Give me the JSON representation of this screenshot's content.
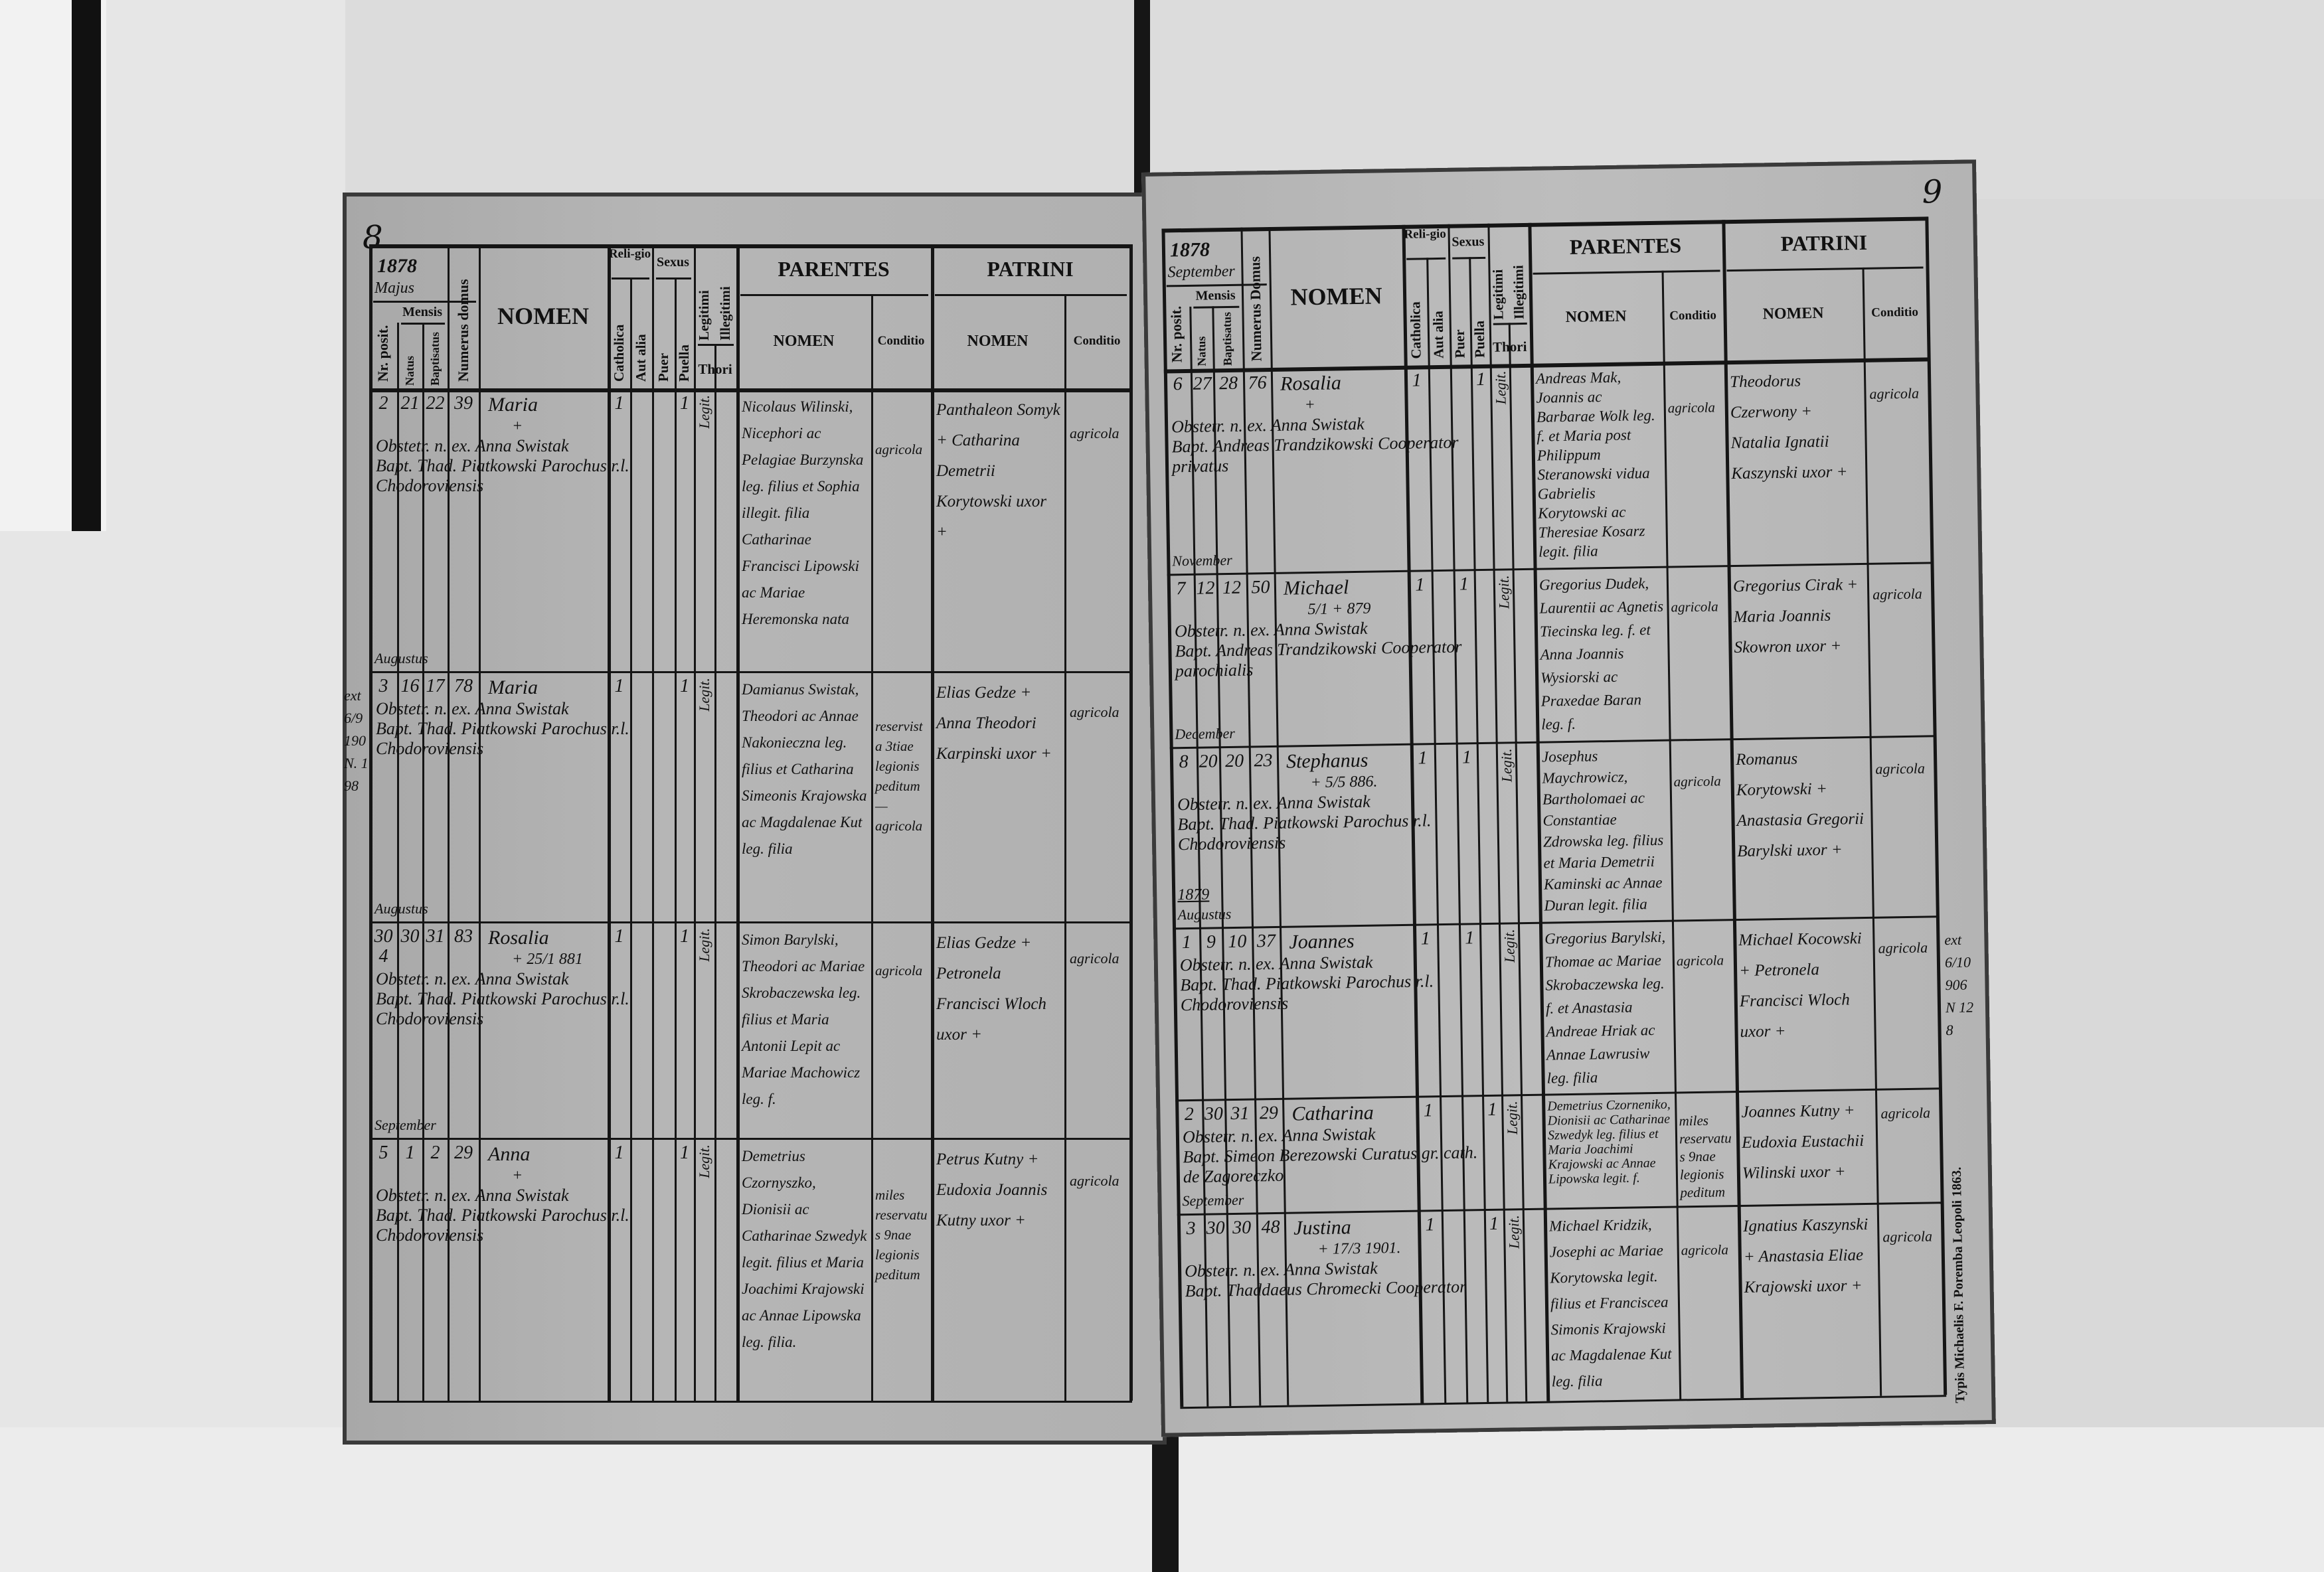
{
  "headers": {
    "mensis": "Mensis",
    "nr_posit": "Nr. posit.",
    "natus": "Natus",
    "baptisatus": "Baptisatus",
    "nomen": "NOMEN",
    "religio": "Reli-gio",
    "catholica": "Catholica",
    "aut_alia": "Aut alia",
    "sexus": "Sexus",
    "puer": "Puer",
    "puella": "Puella",
    "legitimi": "Legitimi",
    "illegitimi": "Illegitimi",
    "thori": "Thori",
    "parentes": "PARENTES",
    "patrini": "PATRINI",
    "sub_nomen": "NOMEN",
    "conditio": "Conditio"
  },
  "left_page": {
    "page_number": "8",
    "year": "1878",
    "month_header": "Majus",
    "numerus_domus": "Numerus domus",
    "entries": [
      {
        "nr": "2",
        "natus": "21",
        "baptisatus": "22",
        "domus": "39",
        "nomen": "Maria",
        "nomen_note": "+",
        "catholica": "1",
        "puer": "",
        "puella": "1",
        "thori": "Legit.",
        "obstetrix": "Obstetr. n. ex. Anna Swistak",
        "baptizans": "Bapt. Thad. Piatkowski Parochus r.l. Chodoroviensis",
        "parentes": "Nicolaus Wilinski, Nicephori ac Pelagiae Burzynska leg. filius et Sophia illegit. filia Catharinae Francisci Lipowski ac Mariae Heremonska nata",
        "parentes_conditio": "agricola",
        "patrini": "Panthaleon Somyk + Catharina Demetrii Korytowski uxor +",
        "patrini_conditio": "agricola",
        "month_after": "Augustus",
        "margin_note": ""
      },
      {
        "nr": "3",
        "natus": "16",
        "baptisatus": "17",
        "domus": "78",
        "nomen": "Maria",
        "nomen_note": "",
        "catholica": "1",
        "puer": "",
        "puella": "1",
        "thori": "Legit.",
        "obstetrix": "Obstetr. n. ex. Anna Swistak",
        "baptizans": "Bapt. Thad. Piatkowski Parochus r.l. Chodoroviensis",
        "parentes": "Damianus Swistak, Theodori ac Annae Nakonieczna leg. filius et Catharina Simeonis Krajowska ac Magdalenae Kut leg. filia",
        "parentes_conditio": "reservista 3tiae legionis peditum — agricola",
        "patrini": "Elias Gedze + Anna Theodori Karpinski uxor +",
        "patrini_conditio": "agricola",
        "month_after": "Augustus",
        "margin_note": "ext 6/9 190 N. 198"
      },
      {
        "nr": "30 4",
        "natus": "30",
        "baptisatus": "31",
        "domus": "83",
        "nomen": "Rosalia",
        "nomen_note": "+ 25/1 881",
        "catholica": "1",
        "puer": "",
        "puella": "1",
        "thori": "Legit.",
        "obstetrix": "Obstetr. n. ex. Anna Swistak",
        "baptizans": "Bapt. Thad. Piatkowski Parochus r.l. Chodoroviensis",
        "parentes": "Simon Barylski, Theodori ac Mariae Skrobaczewska leg. filius et Maria Antonii Lepit ac Mariae Machowicz leg. f.",
        "parentes_conditio": "agricola",
        "patrini": "Elias Gedze + Petronela Francisci Wloch uxor +",
        "patrini_conditio": "agricola",
        "month_after": "September",
        "margin_note": ""
      },
      {
        "nr": "5",
        "natus": "1",
        "baptisatus": "2",
        "domus": "29",
        "nomen": "Anna",
        "nomen_note": "+",
        "catholica": "1",
        "puer": "",
        "puella": "1",
        "thori": "Legit.",
        "obstetrix": "Obstetr. n. ex. Anna Swistak",
        "baptizans": "Bapt. Thad. Piatkowski Parochus r.l. Chodoroviensis",
        "parentes": "Demetrius Czornyszko, Dionisii ac Catharinae Szwedyk legit. filius et Maria Joachimi Krajowski ac Annae Lipowska leg. filia.",
        "parentes_conditio": "miles reservatus 9nae legionis peditum",
        "patrini": "Petrus Kutny + Eudoxia Joannis Kutny uxor +",
        "patrini_conditio": "agricola",
        "month_after": "",
        "margin_note": ""
      }
    ]
  },
  "right_page": {
    "page_number": "9",
    "year": "1878",
    "month_header": "September",
    "numerus_domus": "Numerus Domus",
    "printer": "Typis Michaelis F. Poremba Leopoli 1863.",
    "entries": [
      {
        "nr": "6",
        "natus": "27",
        "baptisatus": "28",
        "domus": "76",
        "nomen": "Rosalia",
        "nomen_note": "+",
        "catholica": "1",
        "puer": "",
        "puella": "1",
        "thori": "Legit.",
        "obstetrix": "Obstetr. n. ex. Anna Swistak",
        "baptizans": "Bapt. Andreas Trandzikowski Cooperator privatus",
        "parentes": "Andreas Mak, Joannis ac Barbarae Wolk leg. f. et Maria post Philippum Steranowski vidua Gabrielis Korytowski ac Theresiae Kosarz legit. filia",
        "parentes_conditio": "agricola",
        "patrini": "Theodorus Czerwony + Natalia Ignatii Kaszynski uxor +",
        "patrini_conditio": "agricola",
        "month_after": "November",
        "year_after": "",
        "margin_note": ""
      },
      {
        "nr": "7",
        "natus": "12",
        "baptisatus": "12",
        "domus": "50",
        "nomen": "Michael",
        "nomen_note": "5/1 + 879",
        "catholica": "1",
        "puer": "1",
        "puella": "",
        "thori": "Legit.",
        "obstetrix": "Obstetr. n. ex. Anna Swistak",
        "baptizans": "Bapt. Andreas Trandzikowski Cooperator parochialis",
        "parentes": "Gregorius Dudek, Laurentii ac Agnetis Tiecinska leg. f. et Anna Joannis Wysiorski ac Praxedae Baran leg. f.",
        "parentes_conditio": "agricola",
        "patrini": "Gregorius Cirak + Maria Joannis Skowron uxor +",
        "patrini_conditio": "agricola",
        "month_after": "December",
        "year_after": "",
        "margin_note": ""
      },
      {
        "nr": "8",
        "natus": "20",
        "baptisatus": "20",
        "domus": "23",
        "nomen": "Stephanus",
        "nomen_note": "+ 5/5 886.",
        "catholica": "1",
        "puer": "1",
        "puella": "",
        "thori": "Legit.",
        "obstetrix": "Obstetr. n. ex. Anna Swistak",
        "baptizans": "Bapt. Thad. Piatkowski Parochus r.l. Chodoroviensis",
        "parentes": "Josephus Maychrowicz, Bartholomaei ac Constantiae Zdrowska leg. filius et Maria Demetrii Kaminski ac Annae Duran legit. filia",
        "parentes_conditio": "agricola",
        "patrini": "Romanus Korytowski + Anastasia Gregorii Barylski uxor +",
        "patrini_conditio": "agricola",
        "month_after": "Augustus",
        "year_after": "1879",
        "margin_note": ""
      },
      {
        "nr": "1",
        "natus": "9",
        "baptisatus": "10",
        "domus": "37",
        "nomen": "Joannes",
        "nomen_note": "",
        "catholica": "1",
        "puer": "1",
        "puella": "",
        "thori": "Legit.",
        "obstetrix": "Obstetr. n. ex. Anna Swistak",
        "baptizans": "Bapt. Thad. Piatkowski Parochus r.l. Chodoroviensis",
        "parentes": "Gregorius Barylski, Thomae ac Mariae Skrobaczewska leg. f. et Anastasia Andreae Hriak ac Annae Lawrusiw leg. filia",
        "parentes_conditio": "agricola",
        "patrini": "Michael Kocowski + Petronela Francisci Wloch uxor +",
        "patrini_conditio": "agricola",
        "month_after": "",
        "year_after": "",
        "margin_note": "ext 6/10 906 N 128"
      },
      {
        "nr": "2",
        "natus": "30",
        "baptisatus": "31",
        "domus": "29",
        "nomen": "Catharina",
        "nomen_note": "",
        "catholica": "1",
        "puer": "",
        "puella": "1",
        "thori": "Legit.",
        "obstetrix": "Obstetr. n. ex. Anna Swistak",
        "baptizans": "Bapt. Simeon Berezowski Curatus gr. cath. de Zagoreczko",
        "parentes": "Demetrius Czorneniko, Dionisii ac Catharinae Szwedyk leg. filius et Maria Joachimi Krajowski ac Annae Lipowska legit. f.",
        "parentes_conditio": "miles reservatus 9nae legionis peditum",
        "patrini": "Joannes Kutny + Eudoxia Eustachii Wilinski uxor +",
        "patrini_conditio": "agricola",
        "month_after": "September",
        "year_after": "",
        "margin_note": ""
      },
      {
        "nr": "3",
        "natus": "30",
        "baptisatus": "30",
        "domus": "48",
        "nomen": "Justina",
        "nomen_note": "+ 17/3 1901.",
        "catholica": "1",
        "puer": "",
        "puella": "1",
        "thori": "Legit.",
        "obstetrix": "Obstetr. n. ex. Anna Swistak",
        "baptizans": "Bapt. Thaddaeus Chromecki Cooperator",
        "parentes": "Michael Kridzik, Josephi ac Mariae Korytowska legit. filius et Franciscea Simonis Krajowski ac Magdalenae Kut leg. filia",
        "parentes_conditio": "agricola",
        "patrini": "Ignatius Kaszynski + Anastasia Eliae Krajowski uxor +",
        "patrini_conditio": "agricola",
        "month_after": "",
        "year_after": "",
        "margin_note": ""
      }
    ]
  }
}
